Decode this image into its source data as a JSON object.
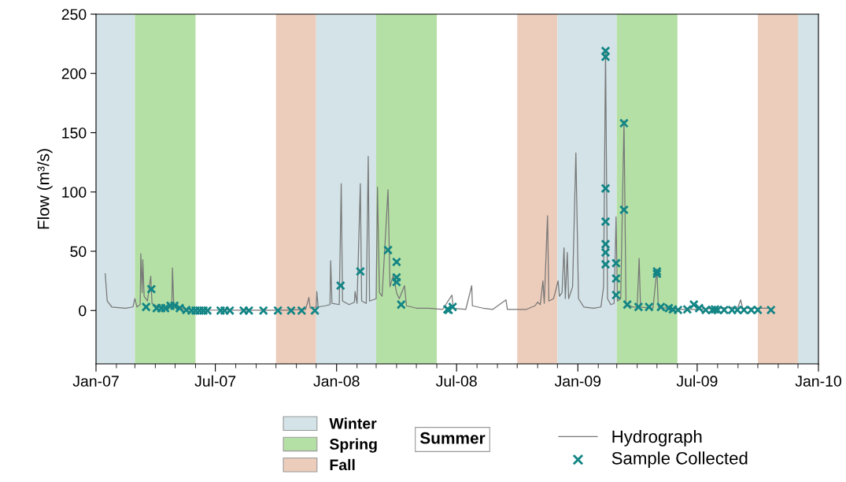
{
  "chart_data": {
    "type": "line",
    "annotations": [
      "Summer"
    ],
    "ylabel": "Flow (m³/s)",
    "legend": "bottom",
    "grid": false,
    "xlim": [
      "2007-01-01",
      "2010-01-01"
    ],
    "xticks": [
      {
        "value": "2007-01-01",
        "label": "Jan-07"
      },
      {
        "value": "2007-07-01",
        "label": "Jul-07"
      },
      {
        "value": "2008-01-01",
        "label": "Jan-08"
      },
      {
        "value": "2008-07-01",
        "label": "Jul-08"
      },
      {
        "value": "2009-01-01",
        "label": "Jan-09"
      },
      {
        "value": "2009-07-01",
        "label": "Jul-09"
      },
      {
        "value": "2010-01-01",
        "label": "Jan-10"
      }
    ],
    "ylim": [
      -45,
      250
    ],
    "yticks": [
      0,
      50,
      100,
      150,
      200,
      250
    ],
    "bands": [
      {
        "axis": "x",
        "from": "2007-01-01",
        "to": "2007-03-01",
        "label": "Winter",
        "color": "#d3e3e8"
      },
      {
        "axis": "x",
        "from": "2007-03-01",
        "to": "2007-06-01",
        "label": "Spring",
        "color": "#b5e0a5"
      },
      {
        "axis": "x",
        "from": "2007-10-01",
        "to": "2007-12-01",
        "label": "Fall",
        "color": "#ecccba"
      },
      {
        "axis": "x",
        "from": "2007-12-01",
        "to": "2008-03-01",
        "color": "#d3e3e8"
      },
      {
        "axis": "x",
        "from": "2008-03-01",
        "to": "2008-06-01",
        "color": "#b5e0a5"
      },
      {
        "axis": "x",
        "from": "2008-10-01",
        "to": "2008-12-01",
        "color": "#ecccba"
      },
      {
        "axis": "x",
        "from": "2008-12-01",
        "to": "2009-03-01",
        "color": "#d3e3e8"
      },
      {
        "axis": "x",
        "from": "2009-03-01",
        "to": "2009-06-01",
        "color": "#b5e0a5"
      },
      {
        "axis": "x",
        "from": "2009-10-01",
        "to": "2009-12-01",
        "color": "#ecccba"
      },
      {
        "axis": "x",
        "from": "2009-12-01",
        "to": "2010-01-01",
        "color": "#d3e3e8"
      }
    ],
    "series": [
      {
        "name": "Hydrograph",
        "color": "#777777",
        "marker": "none",
        "line_style": "solid",
        "x": [
          "2007-01-15",
          "2007-01-18",
          "2007-01-25",
          "2007-02-15",
          "2007-02-26",
          "2007-03-01",
          "2007-03-04",
          "2007-03-09",
          "2007-03-10",
          "2007-03-12",
          "2007-03-13",
          "2007-03-15",
          "2007-03-20",
          "2007-03-25",
          "2007-03-27",
          "2007-04-05",
          "2007-04-26",
          "2007-04-27",
          "2007-04-29",
          "2007-05-15",
          "2007-06-15",
          "2007-08-15",
          "2007-10-15",
          "2007-11-15",
          "2007-11-20",
          "2007-11-22",
          "2007-12-01",
          "2007-12-02",
          "2007-12-04",
          "2007-12-15",
          "2007-12-22",
          "2007-12-23",
          "2007-12-25",
          "2008-01-05",
          "2008-01-08",
          "2008-01-10",
          "2008-01-20",
          "2008-01-28",
          "2008-01-29",
          "2008-02-01",
          "2008-02-06",
          "2008-02-08",
          "2008-02-15",
          "2008-02-18",
          "2008-02-20",
          "2008-03-01",
          "2008-03-03",
          "2008-03-06",
          "2008-03-10",
          "2008-03-19",
          "2008-03-22",
          "2008-03-27",
          "2008-04-01",
          "2008-04-05",
          "2008-04-13",
          "2008-04-16",
          "2008-05-01",
          "2008-05-20",
          "2008-06-10",
          "2008-06-24",
          "2008-06-26",
          "2008-07-15",
          "2008-07-24",
          "2008-07-25",
          "2008-08-10",
          "2008-08-25",
          "2008-09-14",
          "2008-09-16",
          "2008-10-15",
          "2008-10-28",
          "2008-11-01",
          "2008-11-05",
          "2008-11-09",
          "2008-11-11",
          "2008-11-16",
          "2008-11-18",
          "2008-11-25",
          "2008-11-28",
          "2008-12-02",
          "2008-12-04",
          "2008-12-08",
          "2008-12-11",
          "2008-12-13",
          "2008-12-16",
          "2008-12-18",
          "2008-12-24",
          "2008-12-29",
          "2009-01-02",
          "2009-01-10",
          "2009-01-25",
          "2009-02-05",
          "2009-02-09",
          "2009-02-12",
          "2009-02-15",
          "2009-02-20",
          "2009-02-25",
          "2009-02-28",
          "2009-03-02",
          "2009-03-07",
          "2009-03-12",
          "2009-03-15",
          "2009-03-25",
          "2009-04-01",
          "2009-04-04",
          "2009-04-06",
          "2009-04-25",
          "2009-05-01",
          "2009-05-03",
          "2009-06-01",
          "2009-07-01",
          "2009-08-01",
          "2009-09-01",
          "2009-09-05",
          "2009-09-08",
          "2009-10-17"
        ],
        "values": [
          31,
          8,
          3,
          2,
          3,
          10,
          3,
          5,
          48,
          15,
          43,
          12,
          8,
          29,
          6,
          3,
          3,
          36,
          4,
          1,
          0.5,
          0.3,
          0.3,
          1,
          11,
          2,
          3,
          16,
          3,
          4,
          5,
          42,
          6,
          5,
          107,
          8,
          5,
          7,
          16,
          6,
          107,
          8,
          6,
          130,
          8,
          10,
          104,
          15,
          12,
          102,
          20,
          30,
          15,
          10,
          21,
          4,
          2,
          2,
          1,
          13,
          2,
          1,
          21,
          4,
          2,
          1,
          9,
          1,
          1,
          4,
          7,
          5,
          25,
          6,
          80,
          8,
          10,
          16,
          25,
          12,
          15,
          53,
          10,
          49,
          10,
          20,
          133,
          10,
          3,
          2,
          3,
          20,
          219,
          10,
          5,
          6,
          79,
          8,
          10,
          160,
          6,
          3,
          3,
          44,
          3,
          2,
          35,
          3,
          1,
          1,
          2,
          3,
          9,
          2,
          2
        ]
      },
      {
        "name": "Sample Collected",
        "type": "scatter",
        "color": "#138585",
        "marker": "cross",
        "x": [
          "2007-03-18",
          "2007-03-26",
          "2007-04-03",
          "2007-04-10",
          "2007-04-16",
          "2007-04-24",
          "2007-04-30",
          "2007-05-08",
          "2007-05-18",
          "2007-05-26",
          "2007-06-01",
          "2007-06-07",
          "2007-06-13",
          "2007-06-19",
          "2007-07-09",
          "2007-07-15",
          "2007-07-23",
          "2007-08-13",
          "2007-08-21",
          "2007-09-12",
          "2007-10-04",
          "2007-10-24",
          "2007-11-09",
          "2007-11-29",
          "2008-01-07",
          "2008-02-06",
          "2008-03-19",
          "2008-04-01",
          "2008-04-01",
          "2008-04-01",
          "2008-04-08",
          "2008-06-17",
          "2008-06-19",
          "2008-06-25",
          "2009-02-12",
          "2009-02-12",
          "2009-02-12",
          "2009-02-12",
          "2009-02-12",
          "2009-02-12",
          "2009-02-12",
          "2009-02-28",
          "2009-02-28",
          "2009-02-28",
          "2009-03-12",
          "2009-03-12",
          "2009-03-17",
          "2009-04-03",
          "2009-04-19",
          "2009-05-01",
          "2009-05-01",
          "2009-05-07",
          "2009-05-19",
          "2009-05-25",
          "2009-06-02",
          "2009-06-16",
          "2009-06-26",
          "2009-07-04",
          "2009-07-14",
          "2009-07-24",
          "2009-07-28",
          "2009-08-01",
          "2009-08-11",
          "2009-08-23",
          "2009-08-31",
          "2009-09-10",
          "2009-09-21",
          "2009-10-01",
          "2009-10-21"
        ],
        "values": [
          3,
          18,
          2,
          2,
          2,
          4,
          4,
          2,
          0.5,
          0,
          0,
          0,
          0,
          0,
          0,
          0,
          0,
          0,
          0,
          0,
          0,
          0,
          0,
          0,
          21,
          33,
          51,
          41,
          28,
          24,
          5,
          1,
          0.5,
          3,
          219,
          214,
          103,
          75,
          56,
          49,
          39,
          40,
          27,
          13,
          158,
          85,
          5,
          3,
          3,
          33,
          31,
          3,
          2,
          1,
          0.5,
          1,
          5,
          2,
          0.5,
          0.5,
          1,
          0.5,
          0.5,
          0.5,
          0.5,
          0.5,
          0.5,
          0.5,
          0.5
        ]
      }
    ]
  }
}
